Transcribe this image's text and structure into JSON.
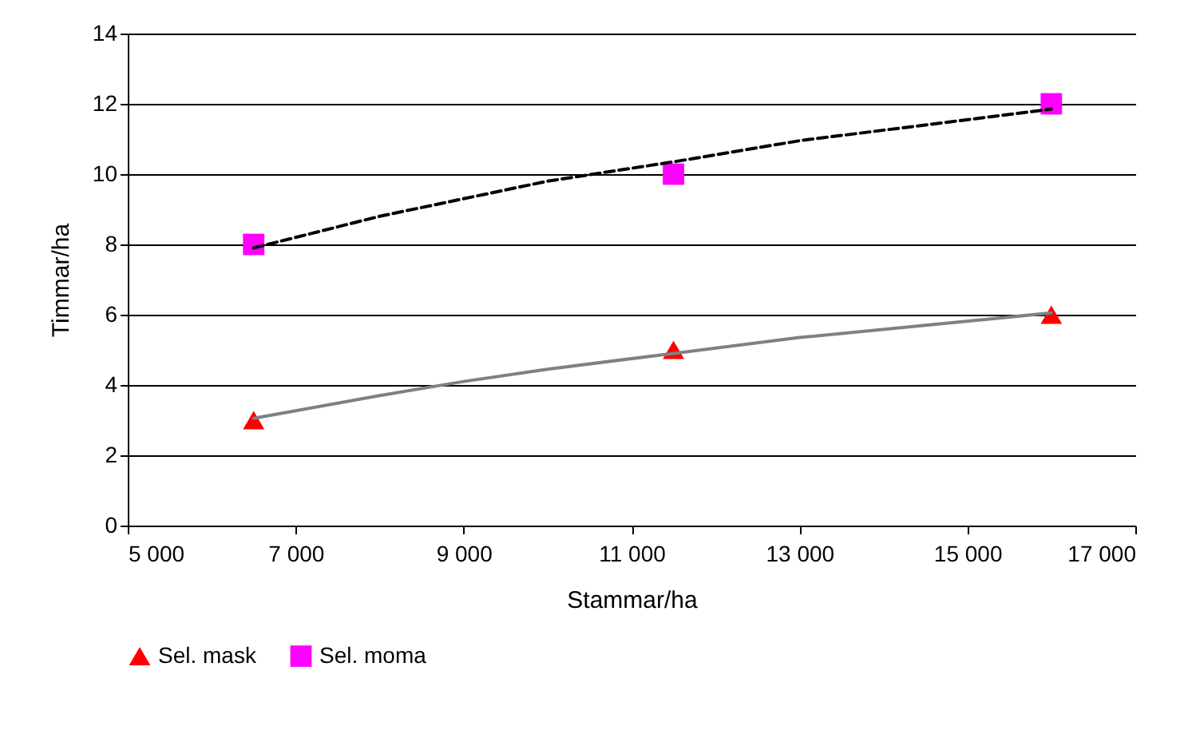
{
  "chart_data": {
    "type": "scatter",
    "xlabel": "Stammar/ha",
    "ylabel": "Timmar/ha",
    "xlim": [
      5000,
      17000
    ],
    "ylim": [
      0,
      14
    ],
    "xticks": [
      {
        "value": 5000,
        "label": "5 000"
      },
      {
        "value": 7000,
        "label": "7 000"
      },
      {
        "value": 9000,
        "label": "9 000"
      },
      {
        "value": 11000,
        "label": "11 000"
      },
      {
        "value": 13000,
        "label": "13 000"
      },
      {
        "value": 15000,
        "label": "15 000"
      },
      {
        "value": 17000,
        "label": "17 000"
      }
    ],
    "yticks": [
      0,
      2,
      4,
      6,
      8,
      10,
      12,
      14
    ],
    "grid": "y",
    "legend": "bottom",
    "series": [
      {
        "name": "Sel. mask",
        "marker": "triangle",
        "color": "#ff0000",
        "x": [
          6500,
          11500,
          16000
        ],
        "values": [
          3,
          5,
          6
        ]
      },
      {
        "name": "Sel. moma",
        "marker": "square",
        "color": "#ff00ff",
        "x": [
          6500,
          11500,
          16000
        ],
        "values": [
          8,
          10,
          12
        ]
      },
      {
        "type": "line",
        "color": "#808080",
        "line_style": "solid",
        "marker": "none",
        "x": [
          6500,
          8000,
          9000,
          10000,
          11500,
          13000,
          14500,
          16000
        ],
        "values": [
          3.05,
          3.7,
          4.1,
          4.45,
          4.9,
          5.35,
          5.7,
          6.05
        ]
      },
      {
        "type": "line",
        "color": "#000000",
        "line_style": "dashed",
        "marker": "none",
        "x": [
          6500,
          8000,
          9000,
          10000,
          11500,
          13000,
          14500,
          16000
        ],
        "values": [
          7.9,
          8.8,
          9.3,
          9.8,
          10.35,
          10.95,
          11.4,
          11.85
        ]
      }
    ]
  }
}
